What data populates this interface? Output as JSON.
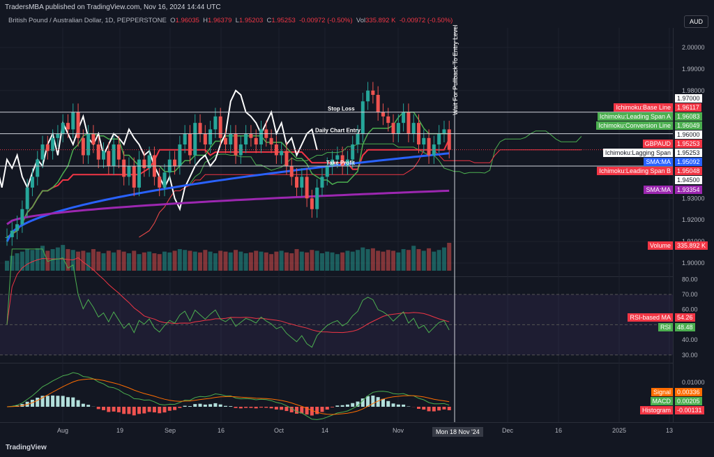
{
  "header": {
    "published": "TradersMBA published on TradingView.com, Nov 16, 2024 14:44 UTC",
    "symbol": "British Pound / Australian Dollar, 1D, PEPPERSTONE",
    "o": "1.96035",
    "h": "1.96379",
    "l": "1.95203",
    "c": "1.95253",
    "chg": "-0.00972 (-0.50%)",
    "vol": "335.892 K",
    "vol_chg": "-0.00972 (-0.50%)",
    "currency": "AUD"
  },
  "annotations": {
    "stop_loss": "Stop Loss",
    "entry": "Daily Chart Entry",
    "take_profit": "Take Profit",
    "vertical": "Wait For Pullback To Entry Level"
  },
  "chart_data": {
    "type": "candlestick",
    "title": "British Pound / Australian Dollar, 1D, PEPPERSTONE",
    "ylim": [
      1.895,
      2.005
    ],
    "yticks": [
      "2.00000",
      "1.99000",
      "1.98000",
      "1.93000",
      "1.92000",
      "1.91000",
      "1.90000"
    ],
    "xticks": [
      "Aug",
      "19",
      "Sep",
      "16",
      "Oct",
      "14",
      "Nov",
      "Dec",
      "16",
      "2025",
      "13"
    ],
    "cursor_date": "Mon 18 Nov '24",
    "levels": {
      "stop_loss": 1.97,
      "entry": 1.96,
      "take_profit": 1.945
    },
    "closes": [
      1.912,
      1.915,
      1.918,
      1.925,
      1.935,
      1.94,
      1.948,
      1.955,
      1.952,
      1.958,
      1.96,
      1.965,
      1.962,
      1.97,
      1.958,
      1.95,
      1.96,
      1.955,
      1.948,
      1.952,
      1.945,
      1.955,
      1.948,
      1.94,
      1.945,
      1.935,
      1.948,
      1.944,
      1.95,
      1.94,
      1.935,
      1.942,
      1.948,
      1.945,
      1.955,
      1.96,
      1.95,
      1.965,
      1.96,
      1.955,
      1.962,
      1.968,
      1.958,
      1.955,
      1.96,
      1.95,
      1.955,
      1.96,
      1.958,
      1.955,
      1.962,
      1.958,
      1.955,
      1.95,
      1.952,
      1.945,
      1.94,
      1.935,
      1.94,
      1.93,
      1.925,
      1.935,
      1.94,
      1.945,
      1.948,
      1.95,
      1.945,
      1.948,
      1.955,
      1.96,
      1.975,
      1.98,
      1.978,
      1.97,
      1.968,
      1.965,
      1.96,
      1.965,
      1.97,
      1.96,
      1.965,
      1.955,
      1.958,
      1.95,
      1.955,
      1.96,
      1.962,
      1.95253
    ],
    "volume": [
      120,
      180,
      210,
      230,
      260,
      250,
      270,
      300,
      240,
      260,
      280,
      310,
      260,
      250,
      230,
      240,
      220,
      260,
      230,
      210,
      240,
      220,
      250,
      230,
      210,
      240,
      200,
      220,
      230,
      210,
      200,
      230,
      220,
      240,
      260,
      250,
      240,
      230,
      220,
      250,
      230,
      210,
      240,
      230,
      220,
      250,
      230,
      210,
      220,
      240,
      230,
      220,
      200,
      230,
      240,
      220,
      210,
      260,
      230,
      220,
      250,
      240,
      210,
      230,
      220,
      200,
      220,
      240,
      230,
      250,
      280,
      260,
      270,
      240,
      230,
      250,
      240,
      220,
      260,
      250,
      300,
      260,
      240,
      270,
      230,
      250,
      280,
      336
    ],
    "labels": [
      {
        "name": "Ichimoku:Base Line",
        "value": "1.96117",
        "color": "#f23645"
      },
      {
        "name": "Ichimoku:Leading Span A",
        "value": "1.96083",
        "color": "#4caf50"
      },
      {
        "name": "Ichimoku:Conversion Line",
        "value": "1.96049",
        "color": "#4caf50"
      },
      {
        "name": "GBPAUD",
        "value": "1.95253",
        "color": "#f23645"
      },
      {
        "name": "Ichimoku:Lagging Span",
        "value": "1.95253",
        "color": "#ffffff"
      },
      {
        "name": "SMA:MA",
        "value": "1.95092",
        "color": "#2962ff"
      },
      {
        "name": "Ichimoku:Leading Span B",
        "value": "1.95048",
        "color": "#f23645"
      },
      {
        "name": "SMA:MA",
        "value": "1.93354",
        "color": "#9c27b0"
      },
      {
        "name": "Volume",
        "value": "335.892 K",
        "color": "#f23645"
      }
    ],
    "level_labels": [
      "1.97000",
      "1.96000",
      "1.94500"
    ],
    "sma_fast": [
      1.91,
      1.9509
    ],
    "sma_slow": [
      1.918,
      1.93354
    ],
    "rsi": {
      "yticks": [
        "80.00",
        "70.00",
        "60.00",
        "40.00",
        "30.00"
      ],
      "labels": [
        {
          "name": "RSI-based MA",
          "value": "54.26",
          "color": "#f23645"
        },
        {
          "name": "RSI",
          "value": "48.48",
          "color": "#4caf50"
        }
      ]
    },
    "macd": {
      "ytick": "0.01000",
      "labels": [
        {
          "name": "Signal",
          "value": "0.00336",
          "color": "#ff6d00"
        },
        {
          "name": "MACD",
          "value": "0.00205",
          "color": "#4caf50"
        },
        {
          "name": "Histogram",
          "value": "-0.00131",
          "color": "#f23645"
        }
      ]
    }
  },
  "footer": {
    "logo": "TradingView"
  }
}
